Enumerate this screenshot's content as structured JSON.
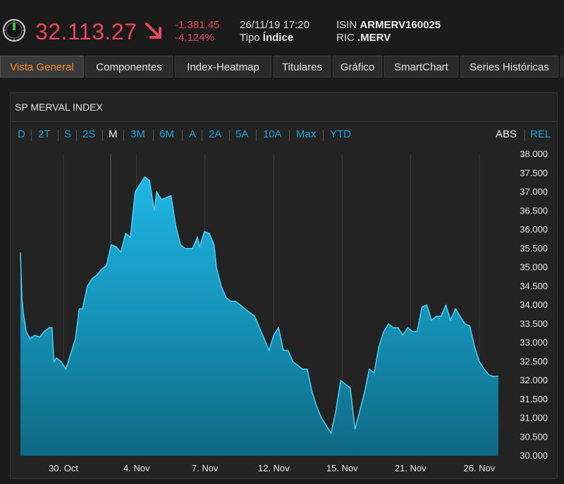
{
  "header": {
    "price": "32.113.27",
    "change_abs": "-1.381.45",
    "change_pct": "-4.124%",
    "datetime": "26/11/19 17:20",
    "tipo_label": "Tipo",
    "tipo_value": "Índice",
    "isin_label": "ISIN",
    "isin_value": "ARMERV160025",
    "ric_label": "RIC",
    "ric_value": ".MERV",
    "down_color": "#e8475a",
    "icons": [
      "clock-icon",
      "down-arrow-icon"
    ]
  },
  "tabs": [
    {
      "label": "Vista General",
      "active": true
    },
    {
      "label": "Componentes",
      "active": false
    },
    {
      "label": "Index-Heatmap",
      "active": false
    },
    {
      "label": "Titulares",
      "active": false
    },
    {
      "label": "Gráfico",
      "active": false
    },
    {
      "label": "SmartChart",
      "active": false
    },
    {
      "label": "Series Históricas",
      "active": false
    }
  ],
  "panel": {
    "title": "SP MERVAL INDEX",
    "ranges": [
      "D",
      "2T",
      "S",
      "2S",
      "M",
      "3M",
      "6M",
      "A",
      "2A",
      "5A",
      "10A",
      "Max",
      "YTD"
    ],
    "selected_range": "M",
    "modes": [
      "ABS",
      "REL"
    ],
    "selected_mode": "ABS"
  },
  "chart_data": {
    "type": "area",
    "title": "SP MERVAL INDEX",
    "ylim": [
      30000,
      38000
    ],
    "yticks": [
      "38.000",
      "37.500",
      "37.000",
      "36.500",
      "36.000",
      "35.500",
      "35.000",
      "34.500",
      "34.000",
      "33.500",
      "33.000",
      "32.500",
      "32.000",
      "31.500",
      "31.000",
      "30.500",
      "30.000"
    ],
    "xticks": [
      "30. Oct",
      "4. Nov",
      "7. Nov",
      "12. Nov",
      "15. Nov",
      "21. Nov",
      "26. Nov"
    ],
    "x_range": [
      0,
      100
    ],
    "xtick_pos": [
      9,
      24.3,
      38.6,
      53,
      67.3,
      81.6,
      96
    ],
    "values": [
      [
        0,
        35400
      ],
      [
        0.3,
        34200
      ],
      [
        0.6,
        33800
      ],
      [
        1.2,
        33300
      ],
      [
        2,
        33100
      ],
      [
        3,
        33200
      ],
      [
        4,
        33150
      ],
      [
        5,
        33300
      ],
      [
        6,
        33400
      ],
      [
        6.6,
        33400
      ],
      [
        7,
        32500
      ],
      [
        7.5,
        32600
      ],
      [
        8.5,
        32500
      ],
      [
        9.5,
        32300
      ],
      [
        10.5,
        32700
      ],
      [
        11.5,
        33100
      ],
      [
        12.3,
        33900
      ],
      [
        13,
        33900
      ],
      [
        14,
        34500
      ],
      [
        15,
        34700
      ],
      [
        16,
        34800
      ],
      [
        17,
        34950
      ],
      [
        18,
        35050
      ],
      [
        19,
        35600
      ],
      [
        20,
        35550
      ],
      [
        21,
        35400
      ],
      [
        22,
        35900
      ],
      [
        23,
        35800
      ],
      [
        24,
        37000
      ],
      [
        25,
        37200
      ],
      [
        26,
        37400
      ],
      [
        27,
        37300
      ],
      [
        28,
        36500
      ],
      [
        28.5,
        37000
      ],
      [
        29.5,
        36800
      ],
      [
        30.5,
        36850
      ],
      [
        31.5,
        36900
      ],
      [
        32.5,
        36100
      ],
      [
        33.5,
        35600
      ],
      [
        34.5,
        35500
      ],
      [
        36,
        35500
      ],
      [
        37,
        35800
      ],
      [
        37.5,
        35550
      ],
      [
        38.5,
        35950
      ],
      [
        39.5,
        35900
      ],
      [
        40.5,
        35600
      ],
      [
        41,
        35000
      ],
      [
        42,
        34500
      ],
      [
        43,
        34200
      ],
      [
        44,
        34100
      ],
      [
        45,
        34100
      ],
      [
        46,
        34000
      ],
      [
        47,
        33900
      ],
      [
        48,
        33800
      ],
      [
        49,
        33700
      ],
      [
        50,
        33400
      ],
      [
        51,
        33100
      ],
      [
        52,
        32800
      ],
      [
        53,
        33200
      ],
      [
        54,
        33400
      ],
      [
        55,
        32800
      ],
      [
        56,
        32800
      ],
      [
        57,
        32500
      ],
      [
        58,
        32400
      ],
      [
        59,
        32300
      ],
      [
        60,
        32300
      ],
      [
        61,
        31700
      ],
      [
        62,
        31300
      ],
      [
        63,
        31000
      ],
      [
        64,
        30800
      ],
      [
        65,
        30600
      ],
      [
        66,
        31200
      ],
      [
        67,
        32000
      ],
      [
        68,
        31900
      ],
      [
        69,
        31800
      ],
      [
        70,
        30700
      ],
      [
        71,
        31200
      ],
      [
        72,
        31700
      ],
      [
        73,
        32300
      ],
      [
        74,
        32200
      ],
      [
        75,
        32900
      ],
      [
        76,
        33300
      ],
      [
        77,
        33500
      ],
      [
        78,
        33400
      ],
      [
        79,
        33400
      ],
      [
        80,
        33200
      ],
      [
        81,
        33400
      ],
      [
        82,
        33300
      ],
      [
        83,
        33300
      ],
      [
        84,
        33950
      ],
      [
        85,
        34000
      ],
      [
        86,
        33600
      ],
      [
        87,
        33700
      ],
      [
        88,
        33700
      ],
      [
        89,
        34000
      ],
      [
        90,
        33600
      ],
      [
        91,
        33900
      ],
      [
        92,
        33700
      ],
      [
        93,
        33500
      ],
      [
        94,
        33450
      ],
      [
        95,
        32900
      ],
      [
        96,
        32500
      ],
      [
        97,
        32300
      ],
      [
        98,
        32150
      ],
      [
        99,
        32100
      ],
      [
        100,
        32113
      ]
    ]
  }
}
